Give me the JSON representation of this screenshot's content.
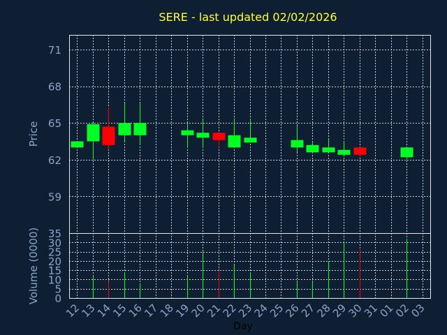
{
  "chart_data": {
    "type": "candlestick",
    "title": "SERE - last updated 02/02/2026",
    "price_panel": {
      "ylabel": "Price",
      "ylim": [
        56,
        72.2
      ],
      "yticks": [
        59,
        62,
        65,
        68,
        71
      ],
      "grid": true
    },
    "volume_panel": {
      "ylabel": "Volume (0000)",
      "ylim": [
        0,
        35
      ],
      "yticks": [
        0,
        5,
        10,
        15,
        20,
        25,
        30,
        35
      ],
      "grid": true
    },
    "xlabel": "Day",
    "x_ticks": [
      "12",
      "13",
      "14",
      "15",
      "16",
      "17",
      "18",
      "19",
      "20",
      "21",
      "22",
      "23",
      "24",
      "25",
      "26",
      "27",
      "28",
      "29",
      "30",
      "31",
      "01",
      "02",
      "03"
    ],
    "candles": [
      {
        "day": "12",
        "open": 63.0,
        "high": 63.5,
        "low": 63.0,
        "close": 63.5,
        "volume": 0
      },
      {
        "day": "13",
        "open": 63.5,
        "high": 65.0,
        "low": 62.0,
        "close": 64.9,
        "volume": 12
      },
      {
        "day": "14",
        "open": 64.7,
        "high": 66.3,
        "low": 62.8,
        "close": 63.2,
        "volume": 9
      },
      {
        "day": "15",
        "open": 64.0,
        "high": 66.6,
        "low": 63.5,
        "close": 65.0,
        "volume": 14
      },
      {
        "day": "16",
        "open": 64.0,
        "high": 66.6,
        "low": 63.2,
        "close": 65.0,
        "volume": 8
      },
      {
        "day": "19",
        "open": 64.0,
        "high": 65.0,
        "low": 63.0,
        "close": 64.4,
        "volume": 12
      },
      {
        "day": "20",
        "open": 63.8,
        "high": 65.4,
        "low": 63.0,
        "close": 64.2,
        "volume": 25
      },
      {
        "day": "21",
        "open": 64.2,
        "high": 64.3,
        "low": 63.0,
        "close": 63.6,
        "volume": 15
      },
      {
        "day": "22",
        "open": 63.0,
        "high": 65.4,
        "low": 63.0,
        "close": 64.0,
        "volume": 18
      },
      {
        "day": "23",
        "open": 63.4,
        "high": 65.3,
        "low": 63.4,
        "close": 63.8,
        "volume": 14
      },
      {
        "day": "26",
        "open": 63.0,
        "high": 64.8,
        "low": 62.6,
        "close": 63.6,
        "volume": 9
      },
      {
        "day": "27",
        "open": 62.6,
        "high": 63.4,
        "low": 62.5,
        "close": 63.2,
        "volume": 9
      },
      {
        "day": "28",
        "open": 62.6,
        "high": 63.7,
        "low": 62.5,
        "close": 63.0,
        "volume": 20
      },
      {
        "day": "29",
        "open": 62.4,
        "high": 63.5,
        "low": 62.3,
        "close": 62.8,
        "volume": 30
      },
      {
        "day": "30",
        "open": 63.0,
        "high": 63.0,
        "low": 62.3,
        "close": 62.4,
        "volume": 27
      },
      {
        "day": "02",
        "open": 62.2,
        "high": 63.0,
        "low": 62.0,
        "close": 63.0,
        "volume": 32
      }
    ],
    "colors": {
      "background": "#0f1f33",
      "title": "#ffff33",
      "axis_text": "#8aa4c8",
      "frame": "#e8e8e8",
      "grid": "#cfcfcf",
      "up": "#00ff22",
      "down": "#ff0000"
    }
  }
}
